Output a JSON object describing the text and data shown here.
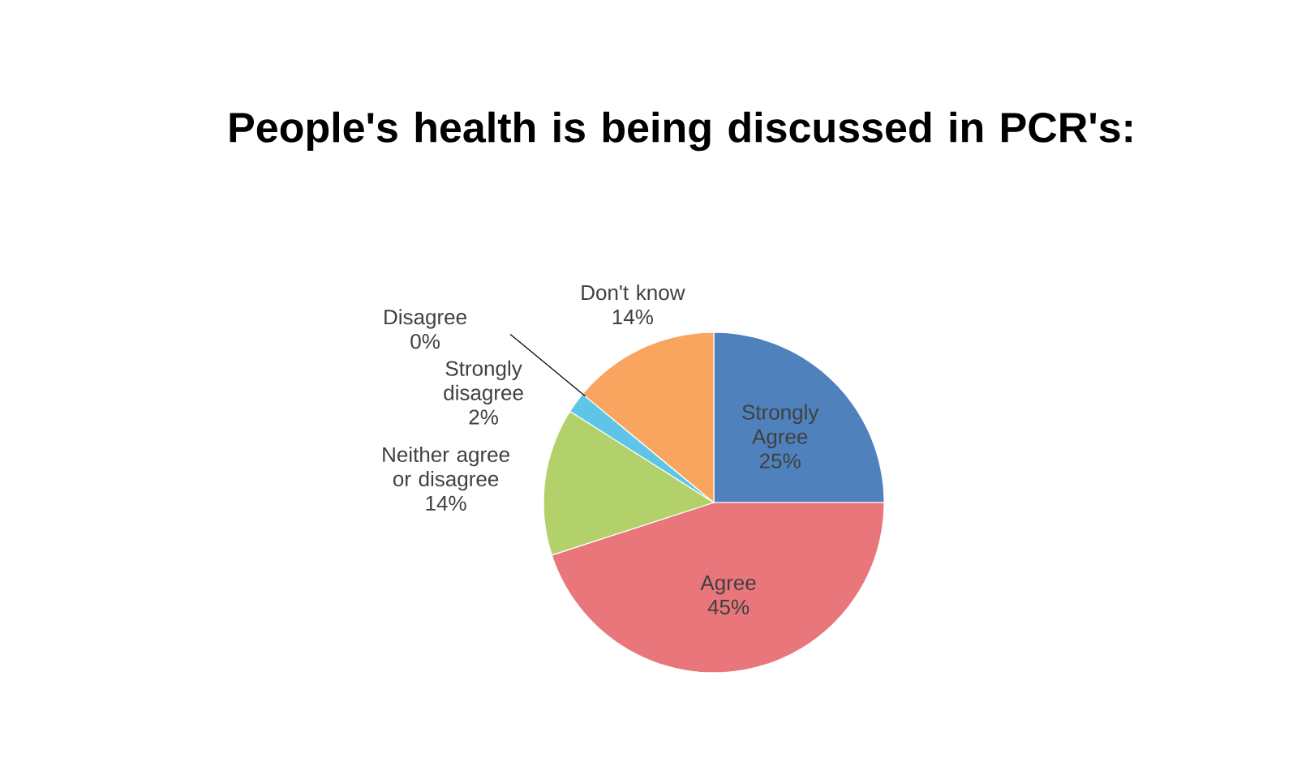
{
  "chart_data": {
    "type": "pie",
    "title": "People's health is being discussed in PCR's:",
    "categories": [
      "Strongly Agree",
      "Agree",
      "Neither agree or disagree",
      "Strongly disagree",
      "Disagree",
      "Don't know"
    ],
    "values": [
      25,
      45,
      14,
      2,
      0,
      14
    ],
    "value_labels": [
      "25%",
      "45%",
      "14%",
      "2%",
      "0%",
      "14%"
    ],
    "colors": [
      "#4f81bd",
      "#e8767a",
      "#b3d16a",
      "#5ec5e6",
      "#a5a5a5",
      "#f9a560"
    ]
  }
}
